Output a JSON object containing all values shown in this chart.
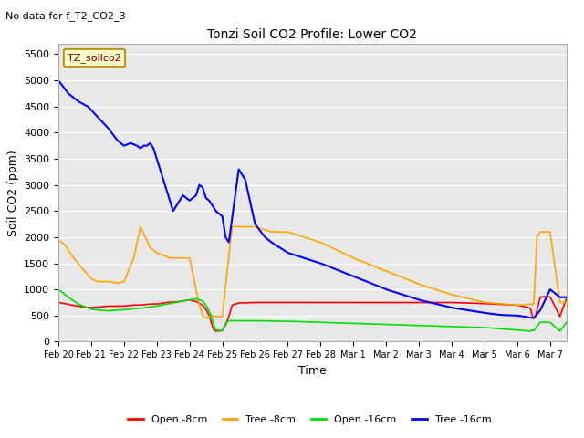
{
  "title": "Tonzi Soil CO2 Profile: Lower CO2",
  "subtitle": "No data for f_T2_CO2_3",
  "xlabel": "Time",
  "ylabel": "Soil CO2 (ppm)",
  "ylim": [
    0,
    5700
  ],
  "yticks": [
    0,
    500,
    1000,
    1500,
    2000,
    2500,
    3000,
    3500,
    4000,
    4500,
    5000,
    5500
  ],
  "bg_color": "#e8e8e8",
  "legend_label": "TZ_soilco2",
  "legend_bg": "#ffffcc",
  "legend_border": "#bb8800",
  "series_colors": {
    "open8": "#ff0000",
    "tree8": "#ffa500",
    "open16": "#00dd00",
    "tree16": "#0000ff"
  },
  "series_labels": {
    "open8": "Open -8cm",
    "tree8": "Tree -8cm",
    "open16": "Open -16cm",
    "tree16": "Tree -16cm"
  },
  "day_labels": [
    "Feb 20",
    "Feb 21",
    "Feb 22",
    "Feb 23",
    "Feb 24",
    "Feb 25",
    "Feb 26",
    "Feb 27",
    "Feb 28",
    "Mar 1",
    "Mar 2",
    "Mar 3",
    "Mar 4",
    "Mar 5",
    "Mar 6",
    "Mar 7"
  ],
  "tree16_knots_t": [
    0,
    0.3,
    0.6,
    0.9,
    1.2,
    1.5,
    1.8,
    2.0,
    2.2,
    2.4,
    2.5,
    2.6,
    2.7,
    2.8,
    2.9,
    3.0,
    3.2,
    3.4,
    3.5,
    3.6,
    3.8,
    4.0,
    4.2,
    4.3,
    4.4,
    4.5,
    4.6,
    4.8,
    5.0,
    5.1,
    5.15,
    5.2,
    5.5,
    5.6,
    5.7,
    6.0,
    6.3,
    6.5,
    7.0,
    7.5,
    8.0,
    9.0,
    10.0,
    11.0,
    12.0,
    13.0,
    13.5,
    14.0,
    14.3,
    14.5,
    14.7,
    15.0,
    15.3,
    15.5
  ],
  "tree16_knots_v": [
    5000,
    4750,
    4600,
    4500,
    4300,
    4100,
    3850,
    3750,
    3800,
    3750,
    3700,
    3750,
    3750,
    3800,
    3700,
    3500,
    3100,
    2700,
    2500,
    2600,
    2800,
    2700,
    2800,
    3000,
    2950,
    2750,
    2700,
    2500,
    2400,
    2000,
    1950,
    1900,
    3300,
    3200,
    3100,
    2250,
    2000,
    1900,
    1700,
    1600,
    1500,
    1250,
    1000,
    800,
    650,
    550,
    510,
    500,
    470,
    450,
    600,
    1000,
    850,
    850
  ],
  "tree8_knots_t": [
    0,
    0.2,
    0.4,
    0.6,
    0.8,
    1.0,
    1.2,
    1.5,
    1.8,
    2.0,
    2.3,
    2.5,
    2.8,
    3.0,
    3.2,
    3.4,
    3.6,
    3.8,
    4.0,
    4.2,
    4.3,
    4.4,
    4.5,
    4.6,
    4.7,
    4.8,
    5.0,
    5.2,
    5.3,
    5.5,
    5.7,
    6.0,
    6.5,
    7.0,
    8.0,
    9.0,
    10.0,
    11.0,
    12.0,
    13.0,
    14.0,
    14.5,
    14.6,
    14.7,
    14.8,
    15.0,
    15.3,
    15.5
  ],
  "tree8_knots_v": [
    1950,
    1850,
    1650,
    1500,
    1350,
    1200,
    1150,
    1150,
    1120,
    1150,
    1600,
    2200,
    1800,
    1700,
    1650,
    1600,
    1600,
    1600,
    1600,
    1000,
    700,
    500,
    450,
    480,
    500,
    480,
    480,
    1650,
    2200,
    2200,
    2200,
    2200,
    2100,
    2100,
    1900,
    1600,
    1350,
    1100,
    900,
    750,
    700,
    720,
    2000,
    2100,
    2100,
    2100,
    750,
    750
  ],
  "open8_knots_t": [
    0,
    0.2,
    0.4,
    0.6,
    0.8,
    1.0,
    1.2,
    1.5,
    1.8,
    2.0,
    2.3,
    2.5,
    2.8,
    3.0,
    3.3,
    3.6,
    3.8,
    4.0,
    4.2,
    4.4,
    4.5,
    4.6,
    4.7,
    4.75,
    4.8,
    5.0,
    5.1,
    5.2,
    5.3,
    5.5,
    6.0,
    7.0,
    8.0,
    9.0,
    10.0,
    11.0,
    12.0,
    13.0,
    14.0,
    14.4,
    14.45,
    14.5,
    14.55,
    14.7,
    14.8,
    15.0,
    15.3,
    15.5
  ],
  "open8_knots_v": [
    750,
    730,
    700,
    680,
    660,
    650,
    660,
    680,
    680,
    680,
    700,
    700,
    720,
    720,
    750,
    760,
    780,
    800,
    770,
    700,
    620,
    500,
    280,
    220,
    200,
    210,
    320,
    480,
    700,
    740,
    750,
    750,
    750,
    750,
    750,
    750,
    750,
    730,
    700,
    640,
    500,
    450,
    480,
    850,
    860,
    860,
    480,
    830
  ],
  "open16_knots_t": [
    0,
    0.3,
    0.6,
    1.0,
    1.5,
    2.0,
    2.5,
    3.0,
    3.5,
    3.8,
    4.0,
    4.2,
    4.4,
    4.5,
    4.6,
    4.7,
    4.75,
    4.8,
    5.0,
    5.1,
    5.2,
    5.5,
    6.0,
    7.0,
    8.0,
    9.0,
    10.0,
    11.0,
    12.0,
    13.0,
    14.0,
    14.4,
    14.45,
    14.5,
    14.7,
    15.0,
    15.3,
    15.5
  ],
  "open16_knots_v": [
    1000,
    850,
    720,
    620,
    590,
    610,
    640,
    680,
    740,
    780,
    800,
    820,
    780,
    700,
    580,
    430,
    300,
    220,
    210,
    350,
    400,
    400,
    400,
    390,
    370,
    350,
    330,
    310,
    290,
    270,
    220,
    200,
    220,
    210,
    370,
    370,
    200,
    370
  ]
}
